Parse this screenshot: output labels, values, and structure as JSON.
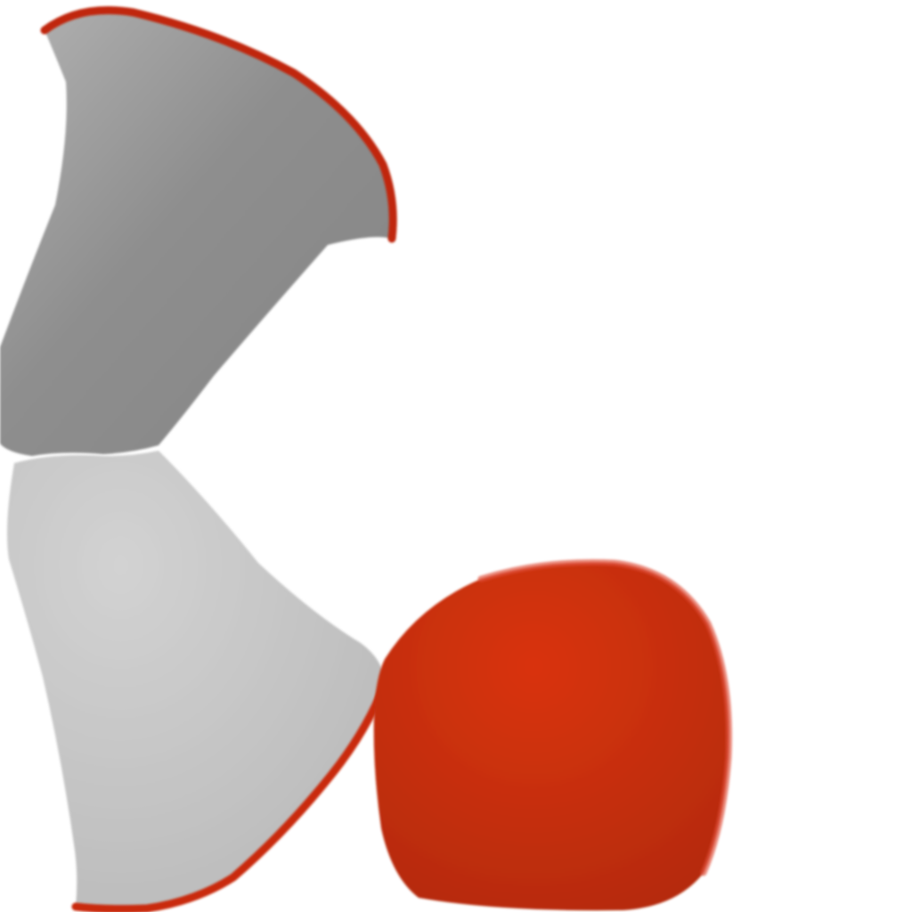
{
  "scene": {
    "background_color": "#ffffff",
    "objects": [
      {
        "name": "upper-gray-shape",
        "fill_light": "#b2b2b2",
        "fill_dark": "#858585",
        "edge_color": "#c0280f"
      },
      {
        "name": "lower-gray-shape",
        "fill_light": "#d2d2d2",
        "fill_dark": "#b9b9b9",
        "edge_color": "#c92a10"
      },
      {
        "name": "red-sphere",
        "fill_light": "#d9330e",
        "fill_dark": "#b12a0c",
        "edge_color": "#e0503a"
      }
    ]
  }
}
